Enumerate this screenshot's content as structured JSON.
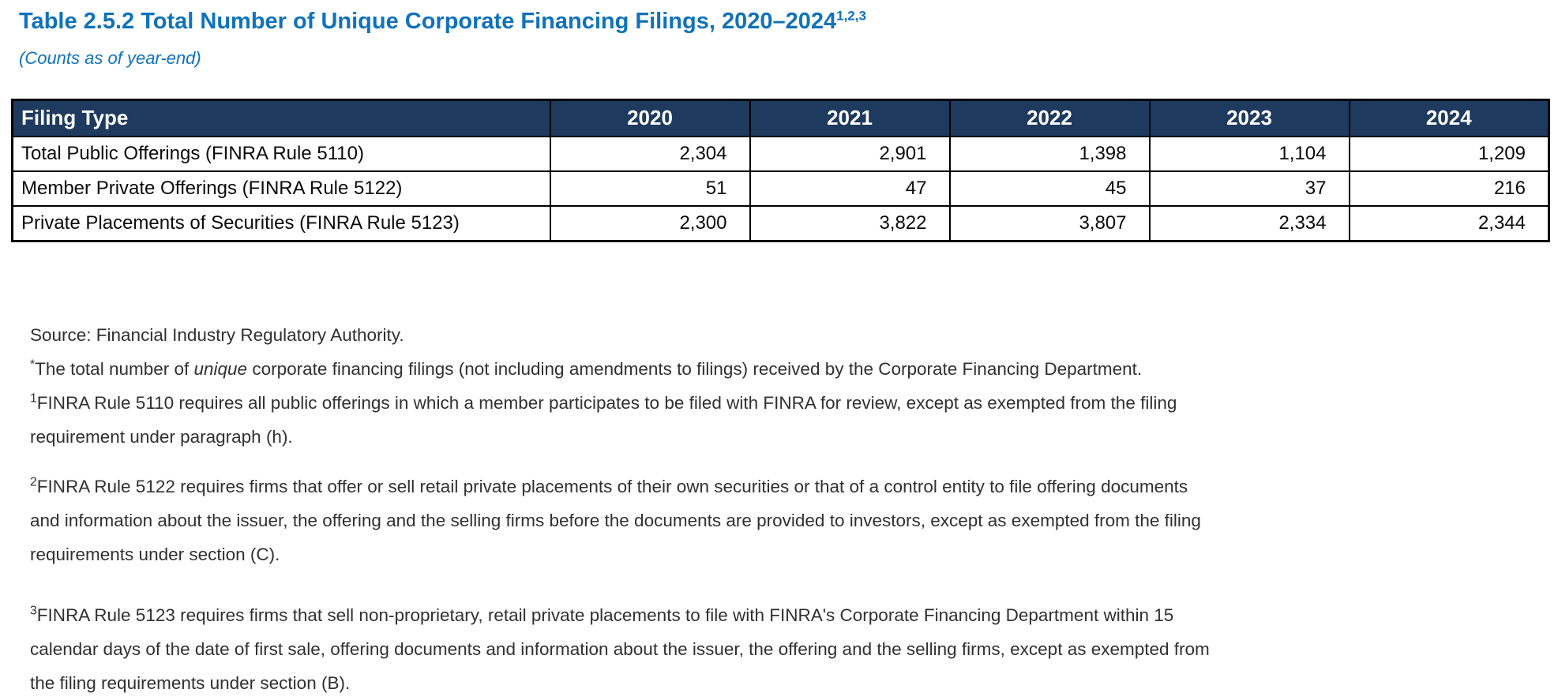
{
  "page": {
    "title": "Table 2.5.2 Total Number of Unique Corporate Financing Filings, 2020–2024",
    "title_superscript": "1,2,3",
    "subtitle": "(Counts as of year-end)"
  },
  "colors": {
    "title_blue": "#1072BB",
    "header_navy": "#1F3A5F",
    "table_border": "#000000",
    "body_text": "#303030"
  },
  "table": {
    "columns": [
      "Filing Type",
      "2020",
      "2021",
      "2022",
      "2023",
      "2024"
    ],
    "rows": [
      {
        "label": "Total Public Offerings (FINRA Rule 5110)",
        "values": [
          "2,304",
          "2,901",
          "1,398",
          "1,104",
          "1,209"
        ]
      },
      {
        "label": "Member Private Offerings (FINRA Rule 5122)",
        "values": [
          "51",
          "47",
          "45",
          "37",
          "216"
        ]
      },
      {
        "label": "Private Placements of Securities (FINRA Rule 5123)",
        "values": [
          "2,300",
          "3,822",
          "3,807",
          "2,334",
          "2,344"
        ]
      }
    ]
  },
  "footnotes": {
    "source": "Source: Financial Industry Regulatory Authority.",
    "star": {
      "marker": "*",
      "text_before_italic": "The total number of ",
      "italic": "unique",
      "text_after_italic": " corporate financing filings (not including amendments to filings) received by the Corporate Financing Department."
    },
    "fn1": {
      "marker": "1",
      "text": "FINRA Rule 5110 requires all public offerings in which a member participates to be filed with FINRA for review, except as exempted from the filing requirement under paragraph (h)."
    },
    "fn2": {
      "marker": "2",
      "text": "FINRA Rule 5122 requires firms that offer or sell retail private placements of their own securities or that of a control entity to file offering documents and information about the issuer, the offering and the selling firms before the documents are provided to investors, except as exempted from the filing requirements under section (C)."
    },
    "fn3": {
      "marker": "3",
      "text": "FINRA Rule 5123 requires firms that sell non-proprietary, retail private placements to file with FINRA's Corporate Financing Department within 15 calendar days of the date of first sale, offering documents and information about the issuer, the offering and the selling firms, except as exempted from the filing requirements under section (B)."
    }
  },
  "chart_data": {
    "type": "table",
    "title": "Table 2.5.2 Total Number of Unique Corporate Financing Filings, 2020–2024",
    "categories": [
      "2020",
      "2021",
      "2022",
      "2023",
      "2024"
    ],
    "series": [
      {
        "name": "Total Public Offerings (FINRA Rule 5110)",
        "values": [
          2304,
          2901,
          1398,
          1104,
          1209
        ]
      },
      {
        "name": "Member Private Offerings (FINRA Rule 5122)",
        "values": [
          51,
          47,
          45,
          37,
          216
        ]
      },
      {
        "name": "Private Placements of Securities (FINRA Rule 5123)",
        "values": [
          2300,
          3822,
          3807,
          2334,
          2344
        ]
      }
    ]
  }
}
